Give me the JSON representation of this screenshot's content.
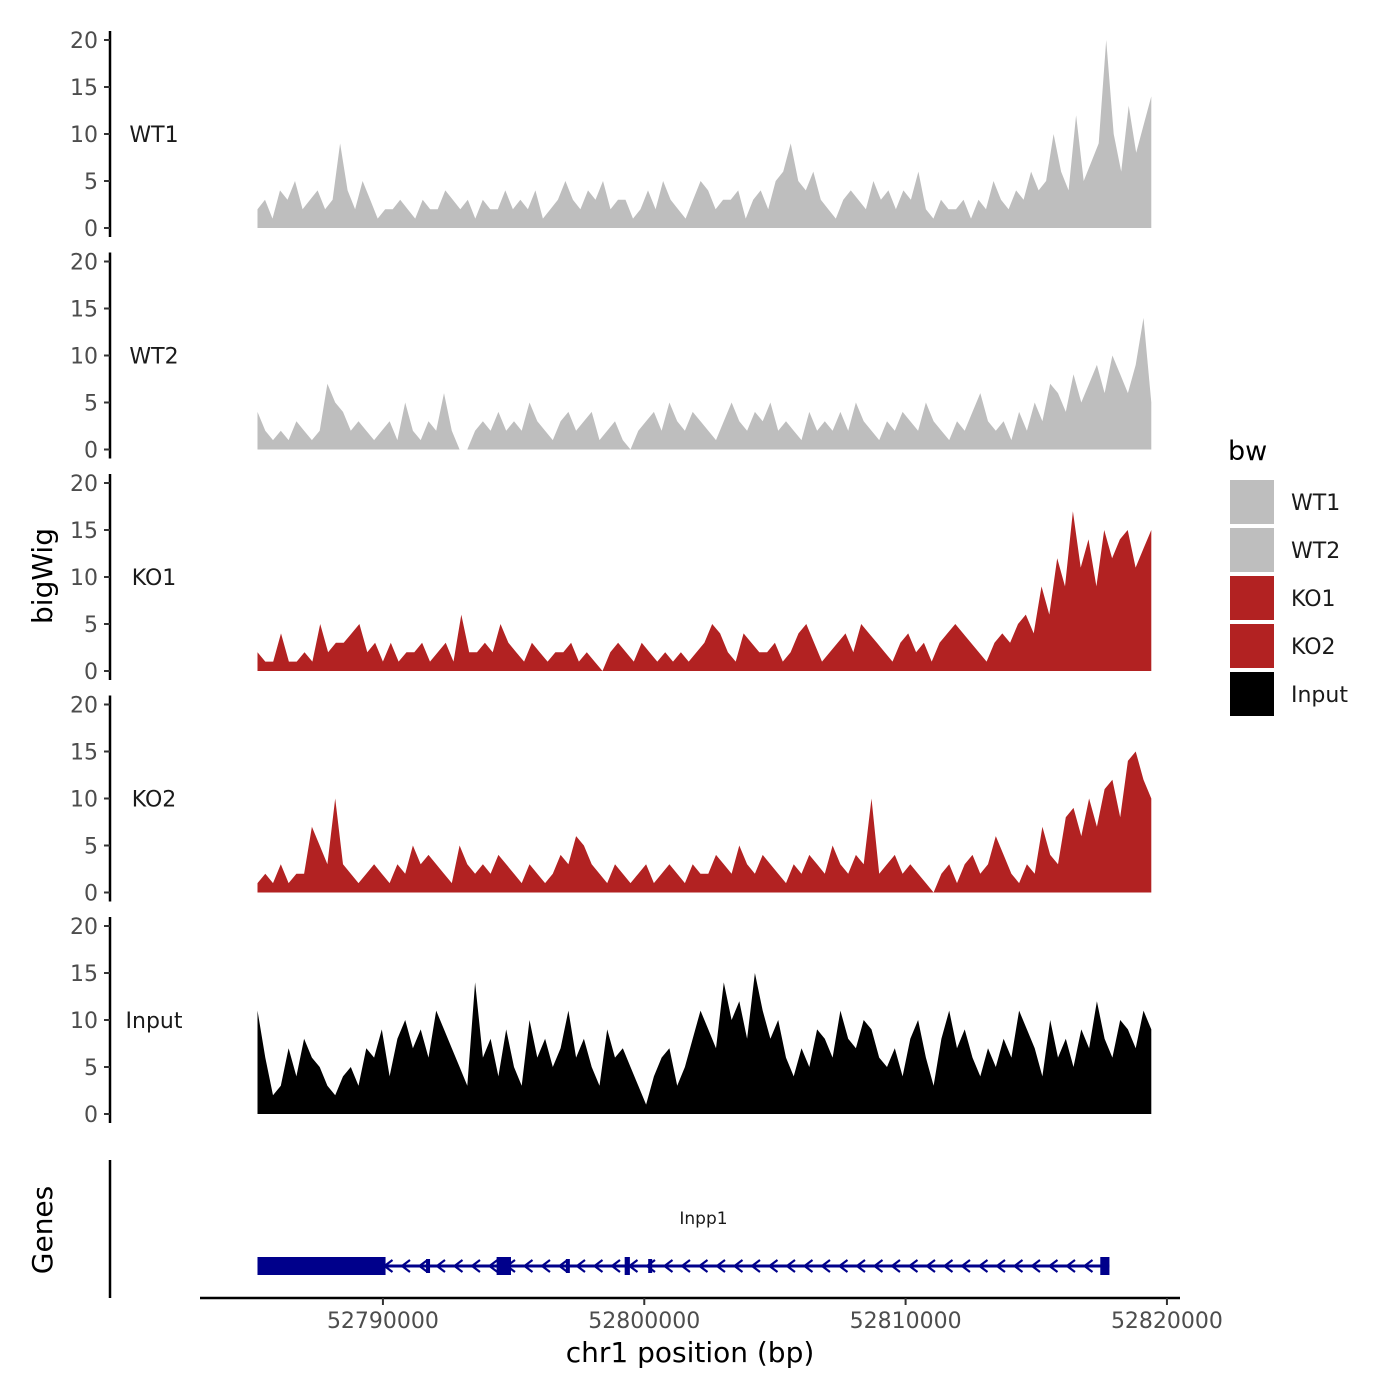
{
  "chart_data": {
    "type": "area",
    "ylabel": "bigWig",
    "genes_label": "Genes",
    "xlabel": "chr1 position (bp)",
    "xlim": [
      52783000,
      52820500
    ],
    "xticks": [
      52790000,
      52800000,
      52810000,
      52820000
    ],
    "xtick_labels": [
      "52790000",
      "52800000",
      "52810000",
      "52820000"
    ],
    "ylim": [
      0,
      20
    ],
    "yticks": [
      0,
      5,
      10,
      15,
      20
    ],
    "ytick_labels": [
      "0",
      "5",
      "10",
      "15",
      "20"
    ],
    "legend": {
      "title": "bw",
      "position": "right",
      "items": [
        {
          "label": "WT1",
          "color": "#bebebe"
        },
        {
          "label": "WT2",
          "color": "#bebebe"
        },
        {
          "label": "KO1",
          "color": "#b22222"
        },
        {
          "label": "KO2",
          "color": "#b22222"
        },
        {
          "label": "Input",
          "color": "#000000"
        }
      ]
    },
    "tracks": [
      {
        "name": "WT1",
        "color": "#bebebe",
        "start": 52785200,
        "end": 52819400,
        "values": [
          2,
          3,
          1,
          4,
          3,
          5,
          2,
          3,
          4,
          2,
          3,
          9,
          4,
          2,
          5,
          3,
          1,
          2,
          2,
          3,
          2,
          1,
          3,
          2,
          2,
          4,
          3,
          2,
          3,
          1,
          3,
          2,
          2,
          4,
          2,
          3,
          2,
          4,
          1,
          2,
          3,
          5,
          3,
          2,
          4,
          3,
          5,
          2,
          3,
          3,
          1,
          2,
          4,
          2,
          5,
          3,
          2,
          1,
          3,
          5,
          4,
          2,
          3,
          3,
          4,
          1,
          3,
          4,
          2,
          5,
          6,
          9,
          5,
          4,
          6,
          3,
          2,
          1,
          3,
          4,
          3,
          2,
          5,
          3,
          4,
          2,
          4,
          3,
          6,
          2,
          1,
          3,
          2,
          2,
          3,
          1,
          3,
          2,
          5,
          3,
          2,
          4,
          3,
          6,
          4,
          5,
          10,
          6,
          4,
          12,
          5,
          7,
          9,
          20,
          10,
          6,
          13,
          8,
          11,
          14
        ]
      },
      {
        "name": "WT2",
        "color": "#bebebe",
        "start": 52785200,
        "end": 52819400,
        "values": [
          4,
          2,
          1,
          2,
          1,
          3,
          2,
          1,
          2,
          7,
          5,
          4,
          2,
          3,
          2,
          1,
          2,
          3,
          1,
          5,
          2,
          1,
          3,
          2,
          6,
          2,
          0,
          0,
          2,
          3,
          2,
          4,
          2,
          3,
          2,
          5,
          3,
          2,
          1,
          3,
          4,
          2,
          3,
          4,
          1,
          2,
          3,
          1,
          0,
          2,
          3,
          4,
          2,
          5,
          3,
          2,
          4,
          3,
          2,
          1,
          3,
          5,
          3,
          2,
          4,
          3,
          5,
          2,
          3,
          2,
          1,
          4,
          2,
          3,
          2,
          4,
          2,
          5,
          3,
          2,
          1,
          3,
          2,
          4,
          3,
          2,
          5,
          3,
          2,
          1,
          3,
          2,
          4,
          6,
          3,
          2,
          3,
          1,
          4,
          2,
          5,
          3,
          7,
          6,
          4,
          8,
          5,
          7,
          9,
          6,
          10,
          8,
          6,
          9,
          14,
          5
        ]
      },
      {
        "name": "KO1",
        "color": "#b22222",
        "start": 52785200,
        "end": 52819400,
        "values": [
          2,
          1,
          1,
          4,
          1,
          1,
          2,
          1,
          5,
          2,
          3,
          3,
          4,
          5,
          2,
          3,
          1,
          3,
          1,
          2,
          2,
          3,
          1,
          2,
          3,
          1,
          6,
          2,
          2,
          3,
          2,
          5,
          3,
          2,
          1,
          3,
          2,
          1,
          2,
          2,
          3,
          1,
          2,
          1,
          0,
          2,
          3,
          2,
          1,
          3,
          2,
          1,
          2,
          1,
          2,
          1,
          2,
          3,
          5,
          4,
          2,
          1,
          4,
          3,
          2,
          2,
          3,
          1,
          2,
          4,
          5,
          3,
          1,
          2,
          3,
          4,
          2,
          5,
          4,
          3,
          2,
          1,
          3,
          4,
          2,
          3,
          1,
          3,
          4,
          5,
          4,
          3,
          2,
          1,
          3,
          4,
          3,
          5,
          6,
          4,
          9,
          6,
          12,
          9,
          17,
          11,
          14,
          9,
          15,
          12,
          14,
          15,
          11,
          13,
          15
        ]
      },
      {
        "name": "KO2",
        "color": "#b22222",
        "start": 52785200,
        "end": 52819400,
        "values": [
          1,
          2,
          1,
          3,
          1,
          2,
          2,
          7,
          5,
          3,
          10,
          3,
          2,
          1,
          2,
          3,
          2,
          1,
          3,
          2,
          5,
          3,
          4,
          3,
          2,
          1,
          5,
          3,
          2,
          3,
          2,
          4,
          3,
          2,
          1,
          3,
          2,
          1,
          2,
          4,
          3,
          6,
          5,
          3,
          2,
          1,
          3,
          2,
          1,
          2,
          3,
          1,
          2,
          3,
          2,
          1,
          3,
          2,
          2,
          4,
          3,
          2,
          5,
          3,
          2,
          4,
          3,
          2,
          1,
          3,
          2,
          4,
          3,
          2,
          5,
          3,
          2,
          4,
          3,
          10,
          2,
          3,
          4,
          2,
          3,
          2,
          1,
          0,
          2,
          3,
          1,
          3,
          4,
          2,
          3,
          6,
          4,
          2,
          1,
          3,
          2,
          7,
          4,
          3,
          8,
          9,
          6,
          10,
          7,
          11,
          12,
          8,
          14,
          15,
          12,
          10
        ]
      },
      {
        "name": "Input",
        "color": "#000000",
        "start": 52785200,
        "end": 52819400,
        "values": [
          11,
          6,
          2,
          3,
          7,
          4,
          8,
          6,
          5,
          3,
          2,
          4,
          5,
          3,
          7,
          6,
          9,
          4,
          8,
          10,
          7,
          9,
          6,
          11,
          9,
          7,
          5,
          3,
          14,
          6,
          8,
          4,
          9,
          5,
          3,
          10,
          6,
          8,
          5,
          7,
          11,
          6,
          8,
          5,
          3,
          9,
          6,
          7,
          5,
          3,
          1,
          4,
          6,
          7,
          3,
          5,
          8,
          11,
          9,
          7,
          14,
          10,
          12,
          8,
          15,
          11,
          8,
          10,
          6,
          4,
          7,
          5,
          9,
          8,
          6,
          11,
          8,
          7,
          10,
          9,
          6,
          5,
          7,
          4,
          8,
          10,
          6,
          3,
          8,
          11,
          7,
          9,
          6,
          4,
          7,
          5,
          8,
          6,
          11,
          9,
          7,
          4,
          10,
          6,
          8,
          5,
          9,
          7,
          12,
          8,
          6,
          10,
          9,
          7,
          11,
          9
        ]
      }
    ],
    "gene": {
      "name": "Inpp1",
      "strand": "-",
      "color": "#00008b",
      "start": 52785200,
      "end": 52817800,
      "exons": [
        {
          "start": 52785200,
          "end": 52790100,
          "thick": true
        },
        {
          "start": 52791650,
          "end": 52791800,
          "thick": false
        },
        {
          "start": 52794350,
          "end": 52794900,
          "thick": true
        },
        {
          "start": 52797000,
          "end": 52797150,
          "thick": false
        },
        {
          "start": 52799250,
          "end": 52799450,
          "thick": true
        },
        {
          "start": 52800150,
          "end": 52800300,
          "thick": false
        },
        {
          "start": 52817450,
          "end": 52817800,
          "thick": true
        }
      ]
    }
  }
}
